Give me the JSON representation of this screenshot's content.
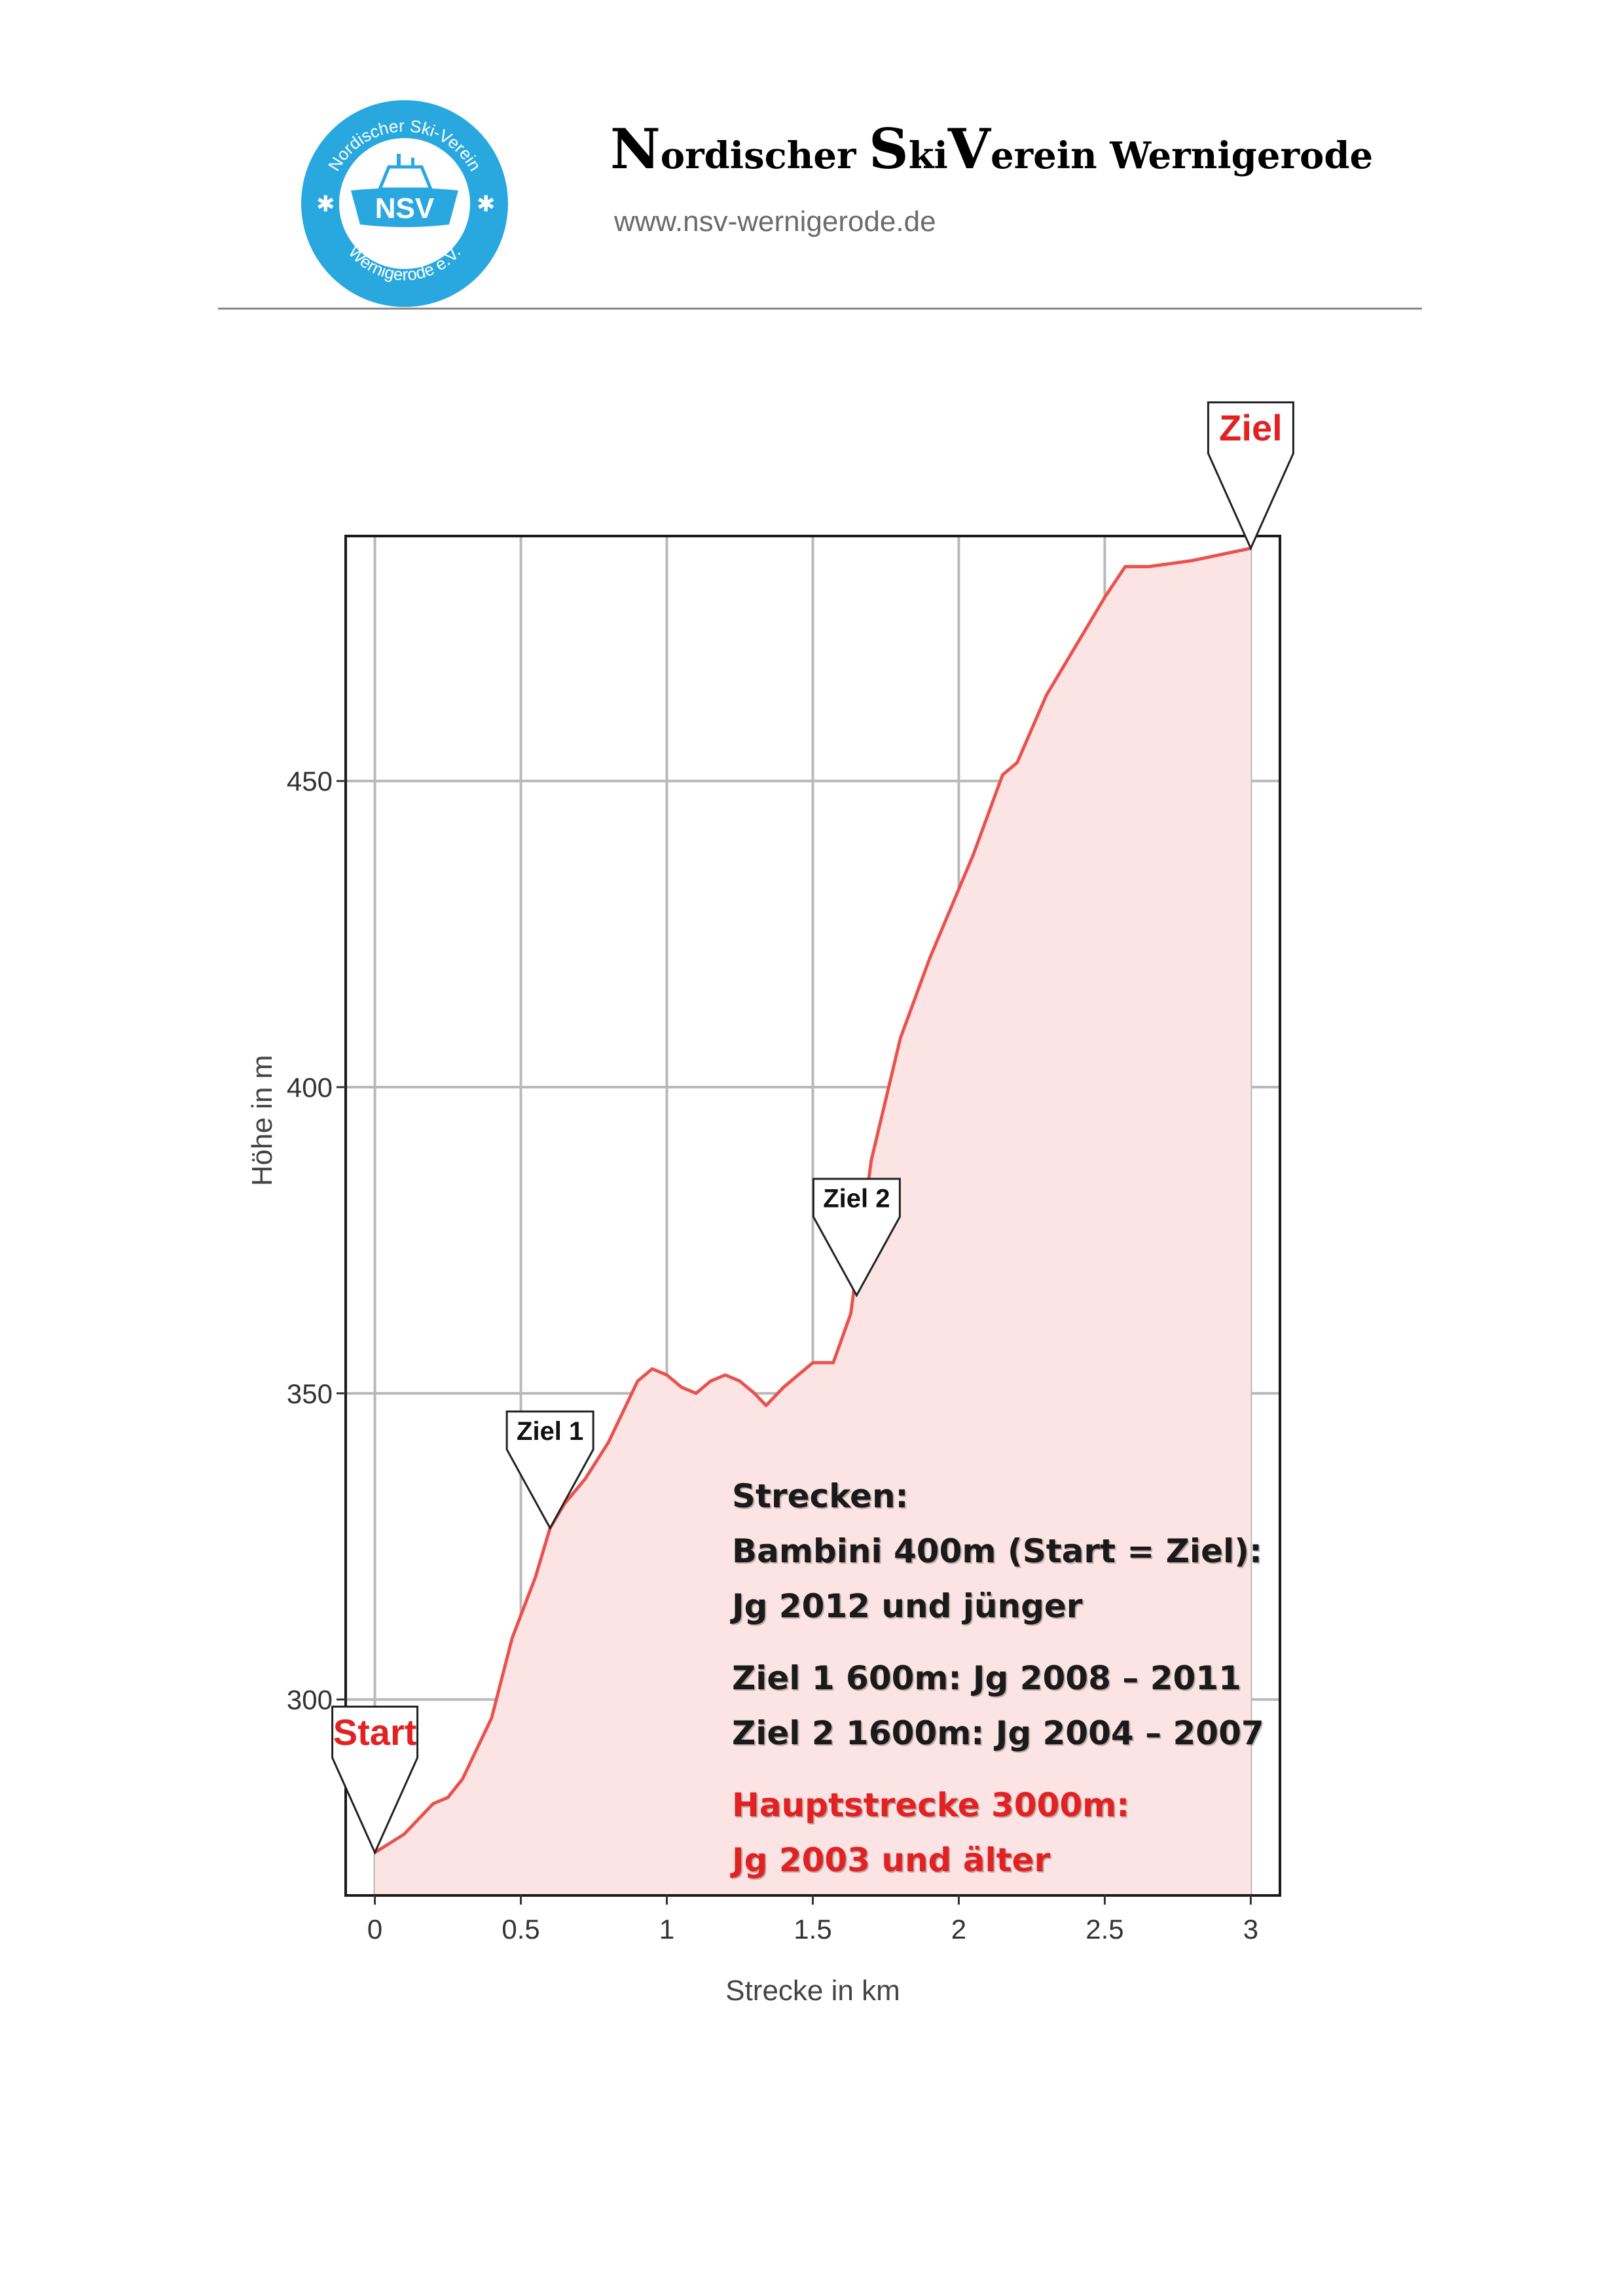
{
  "header": {
    "logo": {
      "arc_top": "Nordischer Ski-Verein",
      "arc_bottom": "Wernigerode e.V.",
      "badge": "NSV",
      "color": "#29a8e0"
    },
    "club_name_parts": [
      {
        "cap": "N",
        "rest": "ordischer "
      },
      {
        "cap": "S",
        "rest": "ki"
      },
      {
        "cap": "V",
        "rest": "erein Wernigerode"
      }
    ],
    "url": "www.nsv-wernigerode.de"
  },
  "chart_data": {
    "type": "area",
    "xlabel": "Strecke in km",
    "ylabel": "Höhe in m",
    "xlim": [
      -0.1,
      3.1
    ],
    "ylim": [
      268,
      490
    ],
    "x_ticks": [
      0,
      0.5,
      1,
      1.5,
      2,
      2.5,
      3
    ],
    "x_tick_labels": [
      "0",
      "0.5",
      "1",
      "1.5",
      "2",
      "2.5",
      "3"
    ],
    "y_ticks": [
      300,
      350,
      400,
      450
    ],
    "y_tick_labels": [
      "300",
      "350",
      "400",
      "450"
    ],
    "grid": true,
    "line_color": "#e8534e",
    "fill_color": "#fde4e4",
    "x": [
      0,
      0.1,
      0.2,
      0.25,
      0.3,
      0.4,
      0.47,
      0.55,
      0.6,
      0.65,
      0.72,
      0.8,
      0.9,
      0.95,
      1.0,
      1.05,
      1.1,
      1.15,
      1.2,
      1.25,
      1.3,
      1.34,
      1.4,
      1.5,
      1.57,
      1.63,
      1.7,
      1.8,
      1.9,
      2.05,
      2.15,
      2.2,
      2.3,
      2.4,
      2.5,
      2.57,
      2.65,
      2.8,
      3.0
    ],
    "y": [
      275,
      278,
      283,
      284,
      287,
      297,
      310,
      320,
      328,
      332,
      336,
      342,
      352,
      354,
      353,
      351,
      350,
      352,
      353,
      352,
      350,
      348,
      351,
      355,
      355,
      363,
      388,
      408,
      421,
      438,
      451,
      453,
      464,
      472,
      480,
      485,
      485,
      486,
      488
    ],
    "markers": [
      {
        "label": "Start",
        "x": 0,
        "y": 275,
        "color": "#e22222"
      },
      {
        "label": "Ziel 1",
        "x": 0.6,
        "y": 328,
        "color": "#111111"
      },
      {
        "label": "Ziel 2",
        "x": 1.65,
        "y": 366,
        "color": "#111111"
      },
      {
        "label": "Ziel",
        "x": 3.0,
        "y": 488,
        "color": "#e22222"
      }
    ]
  },
  "info": {
    "heading": "Strecken:",
    "bambini_line": "Bambini 400m (Start = Ziel):",
    "bambini_years": "Jg 2012 und jünger",
    "ziel1_line": "Ziel 1 600m: Jg 2008 – 2011",
    "ziel2_line": "Ziel 2 1600m: Jg 2004 – 2007",
    "main_line": "Hauptstrecke 3000m:",
    "main_years": "Jg 2003 und älter",
    "highlight_color": "#e22222"
  }
}
